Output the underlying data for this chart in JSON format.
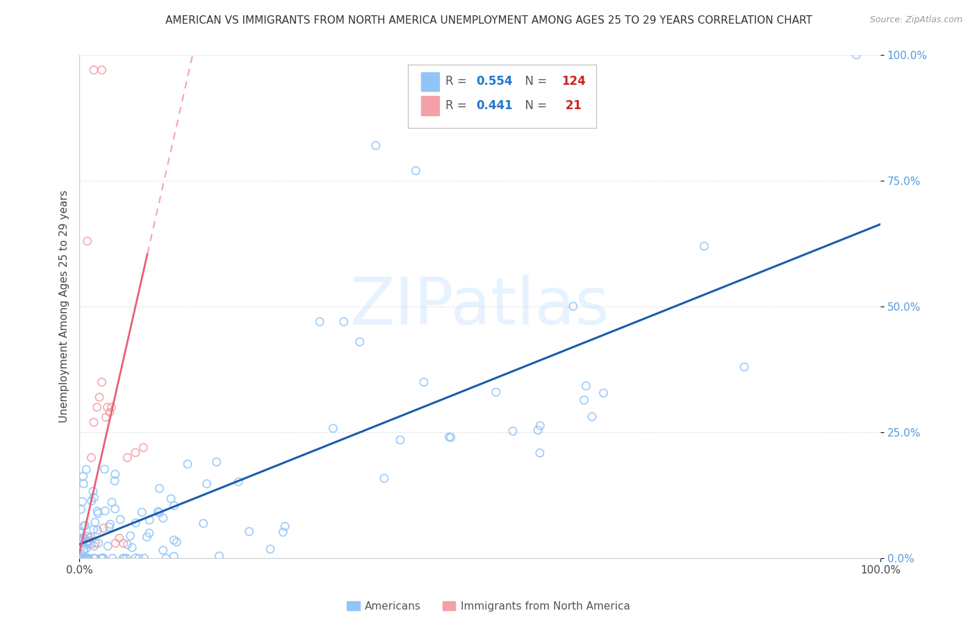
{
  "title": "AMERICAN VS IMMIGRANTS FROM NORTH AMERICA UNEMPLOYMENT AMONG AGES 25 TO 29 YEARS CORRELATION CHART",
  "source": "Source: ZipAtlas.com",
  "ylabel": "Unemployment Among Ages 25 to 29 years",
  "xlim": [
    0,
    1
  ],
  "ylim": [
    0,
    1
  ],
  "americans_R": 0.554,
  "americans_N": 124,
  "immigrants_R": 0.441,
  "immigrants_N": 21,
  "americans_color": "#92C5F7",
  "immigrants_color": "#F4A0A8",
  "americans_line_color": "#1A5DAD",
  "immigrants_line_color": "#E8607A",
  "immigrants_line_dashed_color": "#F4A0B8",
  "watermark": "ZIPatlas",
  "legend_americans": "Americans",
  "legend_immigrants": "Immigrants from North America",
  "ytick_color": "#5599DD",
  "grid_color": "#E0E0E0"
}
